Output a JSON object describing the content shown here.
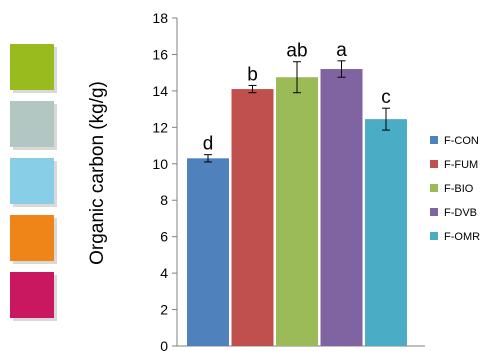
{
  "side_swatches": {
    "colors": [
      "#9ABB1E",
      "#B2C7C2",
      "#87CEE6",
      "#EF8419",
      "#C9185F"
    ]
  },
  "chart_data": {
    "type": "bar",
    "title": "",
    "xlabel": "",
    "ylabel": "Organic carbon (kg/g)",
    "ylim": [
      0,
      18
    ],
    "yticks": [
      0,
      2,
      4,
      6,
      8,
      10,
      12,
      14,
      16,
      18
    ],
    "grid": false,
    "legend_position": "right",
    "categories": [
      "F-CON",
      "F-FUM",
      "F-BIO",
      "F-DVB",
      "F-OMR"
    ],
    "values": [
      10.3,
      14.1,
      14.75,
      15.2,
      12.45
    ],
    "errors": [
      0.2,
      0.2,
      0.85,
      0.45,
      0.6
    ],
    "significance_labels": [
      "d",
      "b",
      "ab",
      "a",
      "c"
    ],
    "colors": [
      "#4F81BD",
      "#C0504D",
      "#9BBB59",
      "#8064A2",
      "#4BACC6"
    ]
  }
}
